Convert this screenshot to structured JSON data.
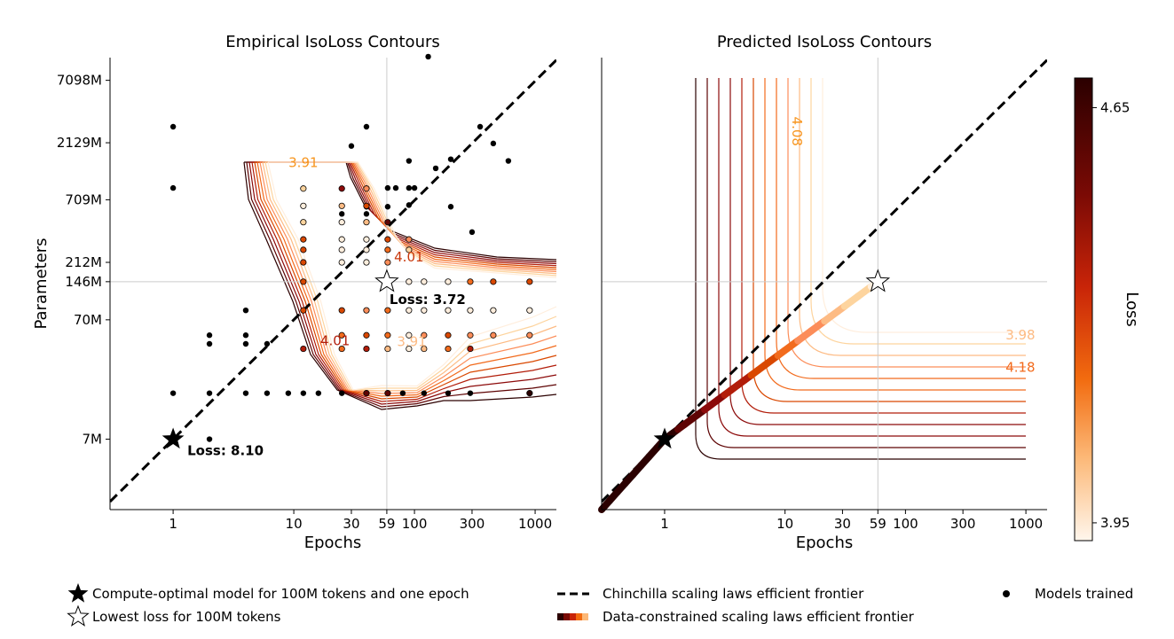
{
  "colors": {
    "axis": "#000000",
    "guide": "#cccccc",
    "contour_scale": [
      "#ffeedd",
      "#fdd49e",
      "#fdbb84",
      "#fc8d59",
      "#f26b1d",
      "#d94801",
      "#b21d0a",
      "#8c0a0a",
      "#5e0404",
      "#2b0000"
    ]
  },
  "chart_data": [
    {
      "type": "scatter",
      "title": "Empirical IsoLoss Contours",
      "xlabel": "Epochs",
      "ylabel": "Parameters",
      "xscale": "log",
      "yscale": "log",
      "xlim": [
        0.3,
        1500
      ],
      "ylim": [
        1.8,
        11000
      ],
      "xticks": [
        1,
        10,
        30,
        59,
        100,
        300,
        1000
      ],
      "xtick_labels": [
        "1",
        "10",
        "30",
        "59",
        "100",
        "300",
        "1000"
      ],
      "yticks": [
        7,
        70,
        146,
        212,
        709,
        2129,
        7098
      ],
      "ytick_labels": [
        "7M",
        "70M",
        "146M",
        "212M",
        "709M",
        "2129M",
        "7098M"
      ],
      "guides": {
        "x": 59,
        "y": 146
      },
      "contour_labels": [
        {
          "text": "3.91",
          "x": 12,
          "y": 1330
        },
        {
          "text": "4.01",
          "x": 90,
          "y": 215
        },
        {
          "text": "4.01",
          "x": 22,
          "y": 43
        },
        {
          "text": "3.91",
          "x": 95,
          "y": 42
        }
      ],
      "annotations": [
        {
          "marker": "star-filled",
          "x": 1,
          "y": 7,
          "text": "Loss: 8.10"
        },
        {
          "marker": "star-open",
          "x": 59,
          "y": 146,
          "text": "Loss: 3.72"
        }
      ],
      "points_black": [
        [
          1,
          2900
        ],
        [
          1,
          890
        ],
        [
          1,
          17
        ],
        [
          2,
          52
        ],
        [
          2,
          44
        ],
        [
          2,
          17
        ],
        [
          2,
          7
        ],
        [
          4,
          84
        ],
        [
          4,
          52
        ],
        [
          4,
          44
        ],
        [
          4,
          17
        ],
        [
          6,
          44
        ],
        [
          6,
          17
        ],
        [
          9,
          17
        ],
        [
          12,
          17
        ],
        [
          16,
          17
        ],
        [
          25,
          17
        ],
        [
          40,
          17
        ],
        [
          60,
          17
        ],
        [
          80,
          17
        ],
        [
          120,
          17
        ],
        [
          190,
          17
        ],
        [
          290,
          17
        ],
        [
          130,
          11200
        ],
        [
          40,
          2900
        ],
        [
          90,
          1500
        ],
        [
          70,
          890
        ],
        [
          60,
          890
        ],
        [
          90,
          890
        ],
        [
          60,
          620
        ],
        [
          40,
          620
        ],
        [
          40,
          540
        ],
        [
          25,
          540
        ],
        [
          200,
          620
        ],
        [
          300,
          380
        ],
        [
          350,
          2900
        ],
        [
          450,
          2100
        ],
        [
          600,
          1500
        ],
        [
          200,
          1550
        ],
        [
          150,
          1300
        ],
        [
          100,
          890
        ],
        [
          90,
          640
        ],
        [
          30,
          2000
        ]
      ],
      "points_colored": [
        [
          12,
          880,
          0.1
        ],
        [
          25,
          880,
          0.8
        ],
        [
          40,
          880,
          0.3
        ],
        [
          12,
          630,
          0.05
        ],
        [
          25,
          630,
          0.2
        ],
        [
          40,
          630,
          0.6
        ],
        [
          12,
          460,
          0.1
        ],
        [
          25,
          460,
          0.05
        ],
        [
          40,
          460,
          0.2
        ],
        [
          60,
          460,
          0.9
        ],
        [
          12,
          330,
          0.5
        ],
        [
          25,
          330,
          0.05
        ],
        [
          40,
          330,
          0.05
        ],
        [
          60,
          330,
          0.6
        ],
        [
          90,
          330,
          0.3
        ],
        [
          12,
          270,
          0.5
        ],
        [
          25,
          270,
          0.05
        ],
        [
          40,
          270,
          0.05
        ],
        [
          60,
          270,
          0.4
        ],
        [
          90,
          270,
          0.1
        ],
        [
          12,
          212,
          0.5
        ],
        [
          25,
          212,
          0.05
        ],
        [
          40,
          212,
          0.05
        ],
        [
          60,
          212,
          0.3
        ],
        [
          12,
          146,
          0.6
        ],
        [
          90,
          146,
          0.05
        ],
        [
          120,
          146,
          0.05
        ],
        [
          190,
          146,
          0.05
        ],
        [
          290,
          146,
          0.4
        ],
        [
          450,
          146,
          0.5
        ],
        [
          900,
          146,
          0.5
        ],
        [
          12,
          84,
          0.6
        ],
        [
          25,
          84,
          0.5
        ],
        [
          40,
          84,
          0.3
        ],
        [
          60,
          84,
          0.4
        ],
        [
          90,
          84,
          0.05
        ],
        [
          120,
          84,
          0.05
        ],
        [
          190,
          84,
          0.05
        ],
        [
          290,
          84,
          0.05
        ],
        [
          450,
          84,
          0.05
        ],
        [
          900,
          84,
          0.05
        ],
        [
          25,
          52,
          0.4
        ],
        [
          40,
          52,
          0.5
        ],
        [
          60,
          52,
          0.4
        ],
        [
          90,
          52,
          0.05
        ],
        [
          120,
          52,
          0.3
        ],
        [
          190,
          52,
          0.6
        ],
        [
          290,
          52,
          0.3
        ],
        [
          450,
          52,
          0.3
        ],
        [
          900,
          52,
          0.3
        ],
        [
          12,
          40,
          0.7
        ],
        [
          25,
          40,
          0.4
        ],
        [
          40,
          40,
          0.7
        ],
        [
          60,
          40,
          0.2
        ],
        [
          90,
          40,
          0.05
        ],
        [
          120,
          40,
          0.2
        ],
        [
          190,
          40,
          0.4
        ],
        [
          290,
          40,
          0.7
        ],
        [
          40,
          17,
          0.9
        ],
        [
          60,
          17,
          0.9
        ],
        [
          900,
          17,
          0.95
        ]
      ]
    },
    {
      "type": "line",
      "title": "Predicted IsoLoss Contours",
      "xlabel": "Epochs",
      "xscale": "log",
      "yscale": "log",
      "xlim": [
        0.3,
        1500
      ],
      "ylim": [
        1.8,
        11000
      ],
      "xticks": [
        1,
        10,
        30,
        59,
        100,
        300,
        1000
      ],
      "xtick_labels": [
        "1",
        "10",
        "30",
        "59",
        "100",
        "300",
        "1000"
      ],
      "guides": {
        "x": 59,
        "y": 146
      },
      "contour_labels": [
        {
          "text": "4.08",
          "x": 11.5,
          "y": 2650
        },
        {
          "text": "3.98",
          "x": 900,
          "y": 52
        },
        {
          "text": "4.18",
          "x": 900,
          "y": 28
        }
      ],
      "annotations": [
        {
          "marker": "star-filled",
          "x": 1,
          "y": 7
        },
        {
          "marker": "star-open",
          "x": 59,
          "y": 146
        }
      ],
      "colorbar": {
        "label": "Loss",
        "ticks": [
          4.65,
          3.95
        ],
        "range": [
          3.92,
          4.7
        ]
      }
    }
  ],
  "legend": {
    "items": [
      {
        "label": "Compute-optimal model for 100M tokens and one epoch",
        "marker": "star-filled"
      },
      {
        "label": "Lowest loss for 100M tokens",
        "marker": "star-open"
      },
      {
        "label": "Chinchilla scaling laws efficient frontier",
        "marker": "dashed-line"
      },
      {
        "label": "Data-constrained scaling laws efficient frontier",
        "marker": "gradient-line"
      },
      {
        "label": "Models trained",
        "marker": "dot"
      }
    ]
  }
}
